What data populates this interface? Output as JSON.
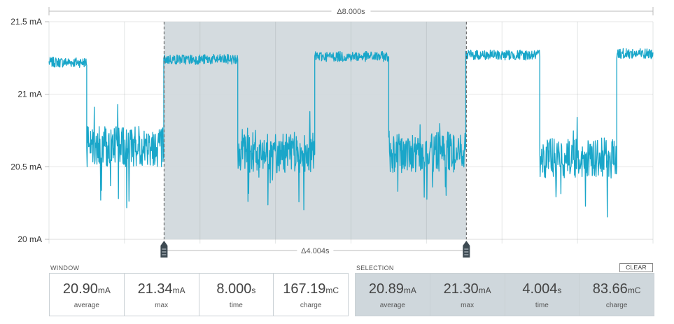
{
  "chart_data": {
    "type": "line",
    "y_unit": "mA",
    "yticks": [
      "21.5 mA",
      "21 mA",
      "20.5 mA",
      "20 mA"
    ],
    "ylim": [
      20,
      21.5
    ],
    "x_range_s": [
      0,
      8.0
    ],
    "selection_range_s": [
      1.524,
      5.528
    ],
    "window_delta": "Δ8.000s",
    "selection_delta": "Δ4.004s",
    "grid": true,
    "series": [
      {
        "color": "#19a6c9",
        "segments": [
          {
            "start": 0.0,
            "end": 0.5,
            "level": 21.22
          },
          {
            "start": 0.5,
            "end": 1.52,
            "level": 20.64
          },
          {
            "start": 1.52,
            "end": 2.5,
            "level": 21.24
          },
          {
            "start": 2.5,
            "end": 3.52,
            "level": 20.6
          },
          {
            "start": 3.52,
            "end": 4.5,
            "level": 21.26
          },
          {
            "start": 4.5,
            "end": 5.52,
            "level": 20.6
          },
          {
            "start": 5.52,
            "end": 6.5,
            "level": 21.27
          },
          {
            "start": 6.5,
            "end": 7.52,
            "level": 20.56
          },
          {
            "start": 7.52,
            "end": 8.0,
            "level": 21.28
          }
        ]
      }
    ]
  },
  "window": {
    "title": "WINDOW",
    "stats": [
      {
        "value": "20.90",
        "unit": "mA",
        "label": "average"
      },
      {
        "value": "21.34",
        "unit": "mA",
        "label": "max"
      },
      {
        "value": "8.000",
        "unit": "s",
        "label": "time"
      },
      {
        "value": "167.19",
        "unit": "mC",
        "label": "charge"
      }
    ]
  },
  "selection": {
    "title": "SELECTION",
    "clear_label": "CLEAR",
    "stats": [
      {
        "value": "20.89",
        "unit": "mA",
        "label": "average"
      },
      {
        "value": "21.30",
        "unit": "mA",
        "label": "max"
      },
      {
        "value": "4.004",
        "unit": "s",
        "label": "time"
      },
      {
        "value": "83.66",
        "unit": "mC",
        "label": "charge"
      }
    ]
  },
  "colors": {
    "trace": "#19a6c9",
    "selection_fill": "#cfd7dc",
    "grid": "#e4e4e4"
  }
}
